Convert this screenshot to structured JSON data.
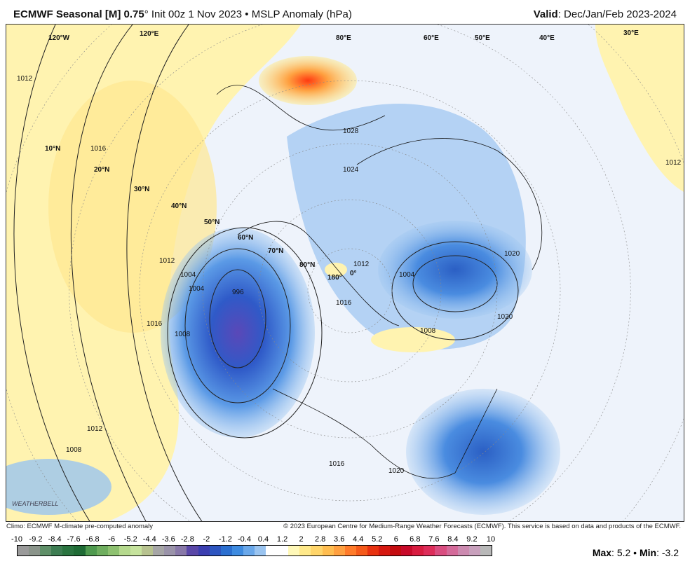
{
  "header": {
    "model": "ECMWF Seasonal [M] 0.75",
    "degree": "°",
    "rest": " Init 00z 1 Nov 2023 • MSLP Anomaly (hPa)",
    "valid_label": "Valid",
    "valid_value": ": Dec/Jan/Feb 2023-2024"
  },
  "footer": {
    "climo": "Climo: ECMWF M-climate pre-computed anomaly",
    "copyright": "© 2023 European Centre for Medium-Range Weather Forecasts (ECMWF). This service is based on data and products of the ECMWF."
  },
  "colorbar": {
    "ticks": [
      "-10",
      "-9.2",
      "-8.4",
      "-7.6",
      "-6.8",
      "-6",
      "-5.2",
      "-4.4",
      "-3.6",
      "-2.8",
      "-2",
      "-1.2",
      "-0.4",
      "0.4",
      "1.2",
      "2",
      "2.8",
      "3.6",
      "4.4",
      "5.2",
      "6",
      "6.8",
      "7.6",
      "8.4",
      "9.2",
      "10"
    ],
    "colors": [
      "#9a9a9a",
      "#8a948a",
      "#5f8f68",
      "#3d7d52",
      "#2a7440",
      "#1f6b35",
      "#4f9a4f",
      "#6fae5f",
      "#8ec170",
      "#b5d98d",
      "#c6e39d",
      "#b7c28f",
      "#a6a6a6",
      "#9a93a9",
      "#8878a8",
      "#5a47a8",
      "#3b3eb0",
      "#2d55c0",
      "#2b6fd0",
      "#3e8be0",
      "#6aa8ea",
      "#9ac4f0",
      "#ffffff",
      "#ffffff",
      "#fff8b8",
      "#ffe98a",
      "#ffd56a",
      "#ffbd50",
      "#ffa040",
      "#ff7b2a",
      "#f55a1a",
      "#e83210",
      "#d61810",
      "#c40c10",
      "#c80a2a",
      "#d81c40",
      "#dd2d5a",
      "#d94d80",
      "#d46a9a",
      "#cc8ab0",
      "#c8a0bc",
      "#b8b8b8"
    ]
  },
  "stats": {
    "max_label": "Max",
    "max": "5.2",
    "min_label": "Min",
    "min": "-3.2"
  },
  "map": {
    "lat_labels": [
      "10°N",
      "20°N",
      "30°N",
      "40°N",
      "50°N",
      "60°N",
      "70°N",
      "80°N"
    ],
    "lon_labels": [
      "120°W",
      "120°E",
      "80°E",
      "60°E",
      "50°E",
      "40°E",
      "30°E",
      "180°",
      "0°"
    ],
    "contour_labels": [
      "996",
      "1004",
      "1008",
      "1012",
      "1016",
      "1020",
      "1004",
      "1008",
      "1016",
      "1020",
      "1012",
      "1028",
      "1020",
      "1016",
      "1016",
      "1012",
      "1012",
      "1008",
      "1004",
      "1012",
      "1024"
    ],
    "logo": "WEATHERBELL"
  }
}
